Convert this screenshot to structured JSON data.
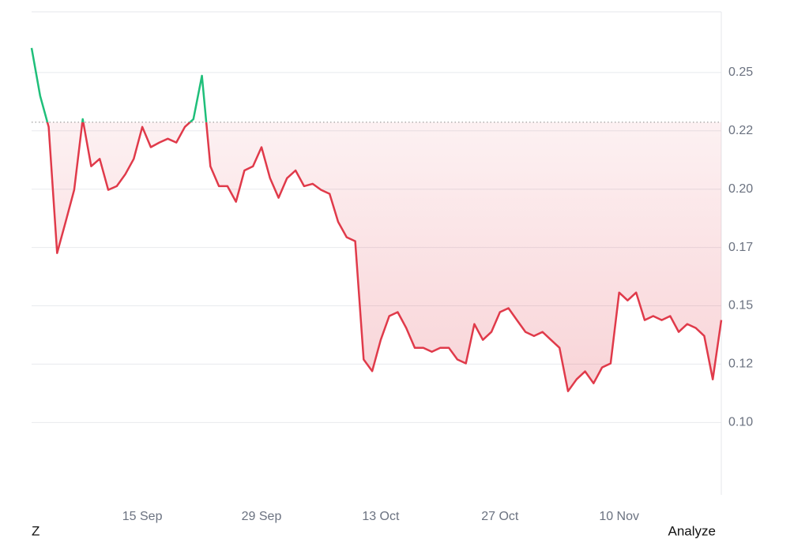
{
  "chart_data": {
    "type": "line",
    "categories": [
      null,
      null,
      null,
      null,
      null,
      null,
      null,
      null,
      null,
      null,
      null,
      null,
      null,
      "15 Sep",
      null,
      null,
      null,
      null,
      null,
      null,
      null,
      null,
      null,
      null,
      null,
      null,
      null,
      "29 Sep",
      null,
      null,
      null,
      null,
      null,
      null,
      null,
      null,
      null,
      null,
      null,
      null,
      null,
      "13 Oct",
      null,
      null,
      null,
      null,
      null,
      null,
      null,
      null,
      null,
      null,
      null,
      null,
      null,
      "27 Oct",
      null,
      null,
      null,
      null,
      null,
      null,
      null,
      null,
      null,
      null,
      null,
      null,
      null,
      "10 Nov",
      null,
      null,
      null,
      null,
      null,
      null,
      null,
      null,
      null,
      null,
      null,
      null
    ],
    "values": [
      0.2605,
      0.24,
      0.2267,
      0.1726,
      0.186,
      0.1997,
      0.23,
      0.2098,
      0.213,
      0.1997,
      0.2013,
      0.2064,
      0.213,
      0.2267,
      0.218,
      0.22,
      0.2216,
      0.22,
      0.2267,
      0.23,
      0.2486,
      0.2098,
      0.2013,
      0.2013,
      0.1946,
      0.208,
      0.2098,
      0.218,
      0.2047,
      0.1963,
      0.2047,
      0.208,
      0.2013,
      0.2023,
      0.1997,
      0.198,
      0.186,
      0.1794,
      0.1777,
      0.127,
      0.122,
      0.1354,
      0.1456,
      0.1473,
      0.1405,
      0.132,
      0.132,
      0.1303,
      0.132,
      0.132,
      0.127,
      0.1253,
      0.1422,
      0.1354,
      0.1388,
      0.1473,
      0.149,
      0.1439,
      0.1388,
      0.1371,
      0.1388,
      0.1354,
      0.132,
      0.1134,
      0.1185,
      0.1219,
      0.1168,
      0.1236,
      0.1253,
      0.1557,
      0.1523,
      0.1557,
      0.1439,
      0.1456,
      0.1439,
      0.1456,
      0.1388,
      0.1422,
      0.1405,
      0.1371,
      0.1185,
      0.1439
    ],
    "color": "#e03a4a",
    "up_color": "#1fbf7a",
    "baseline": 0.2287,
    "ylim": [
      0.069,
      0.276
    ],
    "yticks": [
      {
        "value": 0.1,
        "label": "0.10"
      },
      {
        "value": 0.125,
        "label": "0.12"
      },
      0.15,
      {
        "value": 0.175,
        "label": "0.17"
      },
      {
        "value": 0.2,
        "label": "0.20"
      },
      {
        "value": 0.225,
        "label": "0.22"
      },
      0.25
    ],
    "grid": true
  },
  "footer": {
    "left": "Z",
    "right": "Analyze"
  }
}
